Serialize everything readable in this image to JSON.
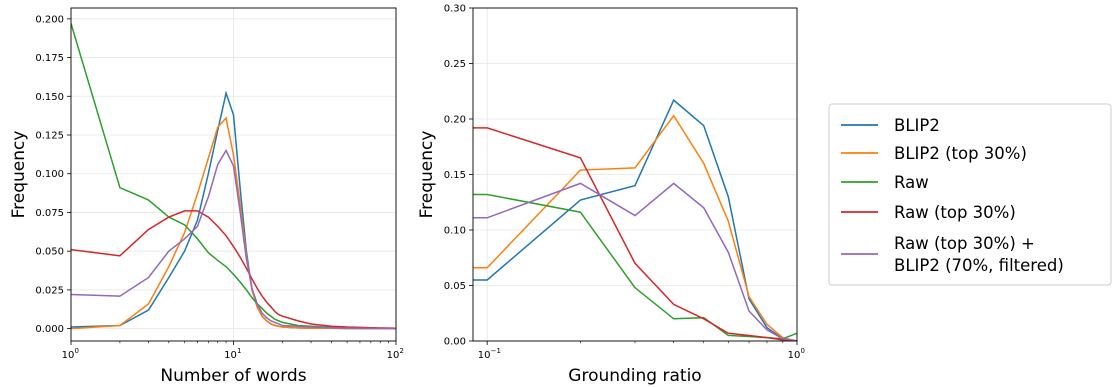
{
  "chart_data": [
    {
      "type": "line",
      "xlabel": "Number of words",
      "ylabel": "Frequency",
      "xscale": "log",
      "xlim": [
        1,
        100
      ],
      "ylim": [
        -0.008,
        0.207
      ],
      "x_ticks": [
        1,
        10,
        100
      ],
      "x_tick_labels": [
        "10",
        "10",
        "10"
      ],
      "x_tick_exponents": [
        "0",
        "1",
        "2"
      ],
      "y_ticks": [
        0,
        0.025,
        0.05,
        0.075,
        0.1,
        0.125,
        0.15,
        0.175,
        0.2
      ],
      "y_tick_labels": [
        "0.000",
        "0.025",
        "0.050",
        "0.075",
        "0.100",
        "0.125",
        "0.150",
        "0.175",
        "0.200"
      ],
      "grid": true,
      "series": [
        {
          "name": "BLIP2",
          "color": "#1f77b4",
          "x": [
            1,
            2,
            3,
            4,
            5,
            6,
            7,
            8,
            9,
            10,
            11,
            12,
            13,
            14,
            15,
            16,
            17,
            18,
            19,
            20,
            25,
            30,
            40,
            50,
            100
          ],
          "y": [
            0.001,
            0.002,
            0.012,
            0.033,
            0.05,
            0.07,
            0.1,
            0.128,
            0.152,
            0.138,
            0.09,
            0.05,
            0.025,
            0.014,
            0.008,
            0.005,
            0.003,
            0.002,
            0.0015,
            0.001,
            0.0005,
            0.0003,
            0.0002,
            0.0001,
            0
          ]
        },
        {
          "name": "BLIP2 (top 30%)",
          "color": "#ff7f0e",
          "x": [
            1,
            2,
            3,
            4,
            5,
            6,
            7,
            8,
            9,
            10,
            11,
            12,
            13,
            14,
            15,
            16,
            17,
            18,
            19,
            20,
            25,
            30,
            40,
            50,
            100
          ],
          "y": [
            0,
            0.002,
            0.016,
            0.04,
            0.062,
            0.087,
            0.11,
            0.13,
            0.136,
            0.112,
            0.08,
            0.047,
            0.025,
            0.014,
            0.008,
            0.005,
            0.003,
            0.002,
            0.0015,
            0.001,
            0.0005,
            0.0003,
            0.0002,
            0.0001,
            0
          ]
        },
        {
          "name": "Raw",
          "color": "#2ca02c",
          "x": [
            1,
            2,
            3,
            4,
            5,
            6,
            7,
            8,
            9,
            10,
            11,
            12,
            13,
            14,
            15,
            16,
            17,
            18,
            19,
            20,
            25,
            30,
            40,
            50,
            100
          ],
          "y": [
            0.197,
            0.091,
            0.083,
            0.072,
            0.067,
            0.058,
            0.049,
            0.044,
            0.04,
            0.035,
            0.03,
            0.025,
            0.02,
            0.016,
            0.013,
            0.01,
            0.008,
            0.006,
            0.005,
            0.004,
            0.002,
            0.0015,
            0.0008,
            0.0005,
            0.0001
          ]
        },
        {
          "name": "Raw (top 30%)",
          "color": "#d62728",
          "x": [
            1,
            2,
            3,
            4,
            5,
            6,
            7,
            8,
            9,
            10,
            11,
            12,
            13,
            14,
            15,
            16,
            17,
            18,
            19,
            20,
            25,
            30,
            40,
            50,
            100
          ],
          "y": [
            0.051,
            0.047,
            0.064,
            0.072,
            0.076,
            0.076,
            0.072,
            0.066,
            0.06,
            0.053,
            0.046,
            0.039,
            0.032,
            0.026,
            0.021,
            0.017,
            0.014,
            0.011,
            0.009,
            0.008,
            0.005,
            0.003,
            0.0015,
            0.001,
            0.0002
          ]
        },
        {
          "name": "Raw (top 30%) +\nBLIP2 (70%, filtered)",
          "color": "#9467bd",
          "x": [
            1,
            2,
            3,
            4,
            5,
            6,
            7,
            8,
            9,
            10,
            11,
            12,
            13,
            14,
            15,
            16,
            17,
            18,
            19,
            20,
            25,
            30,
            40,
            50,
            100
          ],
          "y": [
            0.022,
            0.021,
            0.033,
            0.05,
            0.058,
            0.066,
            0.085,
            0.106,
            0.115,
            0.105,
            0.075,
            0.045,
            0.026,
            0.016,
            0.01,
            0.007,
            0.005,
            0.004,
            0.003,
            0.002,
            0.0015,
            0.001,
            0.0005,
            0.0003,
            0
          ]
        }
      ]
    },
    {
      "type": "line",
      "xlabel": "Grounding ratio",
      "ylabel": "Frequency",
      "xscale": "log",
      "xlim": [
        0.09,
        1
      ],
      "ylim": [
        0,
        0.3
      ],
      "x_ticks": [
        0.1,
        1
      ],
      "x_tick_labels": [
        "10",
        "10"
      ],
      "x_tick_exponents": [
        "−1",
        "0"
      ],
      "y_ticks": [
        0,
        0.05,
        0.1,
        0.15,
        0.2,
        0.25,
        0.3
      ],
      "y_tick_labels": [
        "0.00",
        "0.05",
        "0.10",
        "0.15",
        "0.20",
        "0.25",
        "0.30"
      ],
      "grid": true,
      "series": [
        {
          "name": "BLIP2",
          "color": "#1f77b4",
          "x": [
            0.09,
            0.1,
            0.2,
            0.3,
            0.4,
            0.5,
            0.6,
            0.7,
            0.8,
            0.9,
            1.0
          ],
          "y": [
            0.055,
            0.055,
            0.127,
            0.14,
            0.217,
            0.194,
            0.13,
            0.038,
            0.012,
            0.002,
            0
          ]
        },
        {
          "name": "BLIP2 (top 30%)",
          "color": "#ff7f0e",
          "x": [
            0.09,
            0.1,
            0.2,
            0.3,
            0.4,
            0.5,
            0.6,
            0.7,
            0.8,
            0.9,
            1.0
          ],
          "y": [
            0.066,
            0.066,
            0.154,
            0.156,
            0.203,
            0.16,
            0.108,
            0.04,
            0.015,
            0.003,
            0
          ]
        },
        {
          "name": "Raw",
          "color": "#2ca02c",
          "x": [
            0.09,
            0.1,
            0.2,
            0.3,
            0.4,
            0.5,
            0.6,
            0.7,
            0.8,
            0.9,
            1.0
          ],
          "y": [
            0.132,
            0.132,
            0.116,
            0.048,
            0.02,
            0.021,
            0.005,
            0.004,
            0.003,
            0.002,
            0.007
          ]
        },
        {
          "name": "Raw (top 30%)",
          "color": "#d62728",
          "x": [
            0.09,
            0.1,
            0.2,
            0.3,
            0.4,
            0.5,
            0.6,
            0.7,
            0.8,
            0.9,
            1.0
          ],
          "y": [
            0.192,
            0.192,
            0.165,
            0.07,
            0.033,
            0.02,
            0.007,
            0.005,
            0.003,
            0.001,
            0
          ]
        },
        {
          "name": "Raw (top 30%) +\nBLIP2 (70%, filtered)",
          "color": "#9467bd",
          "x": [
            0.09,
            0.1,
            0.2,
            0.3,
            0.4,
            0.5,
            0.6,
            0.7,
            0.8,
            0.9,
            1.0
          ],
          "y": [
            0.111,
            0.111,
            0.142,
            0.113,
            0.142,
            0.12,
            0.08,
            0.027,
            0.01,
            0.002,
            0
          ]
        }
      ]
    }
  ],
  "legend": {
    "placement": "right",
    "entries": [
      {
        "label": "BLIP2",
        "color": "#1f77b4"
      },
      {
        "label": "BLIP2 (top 30%)",
        "color": "#ff7f0e"
      },
      {
        "label": "Raw",
        "color": "#2ca02c"
      },
      {
        "label": "Raw (top 30%)",
        "color": "#d62728"
      },
      {
        "label": "Raw (top 30%) +\nBLIP2 (70%, filtered)",
        "color": "#9467bd"
      }
    ]
  }
}
